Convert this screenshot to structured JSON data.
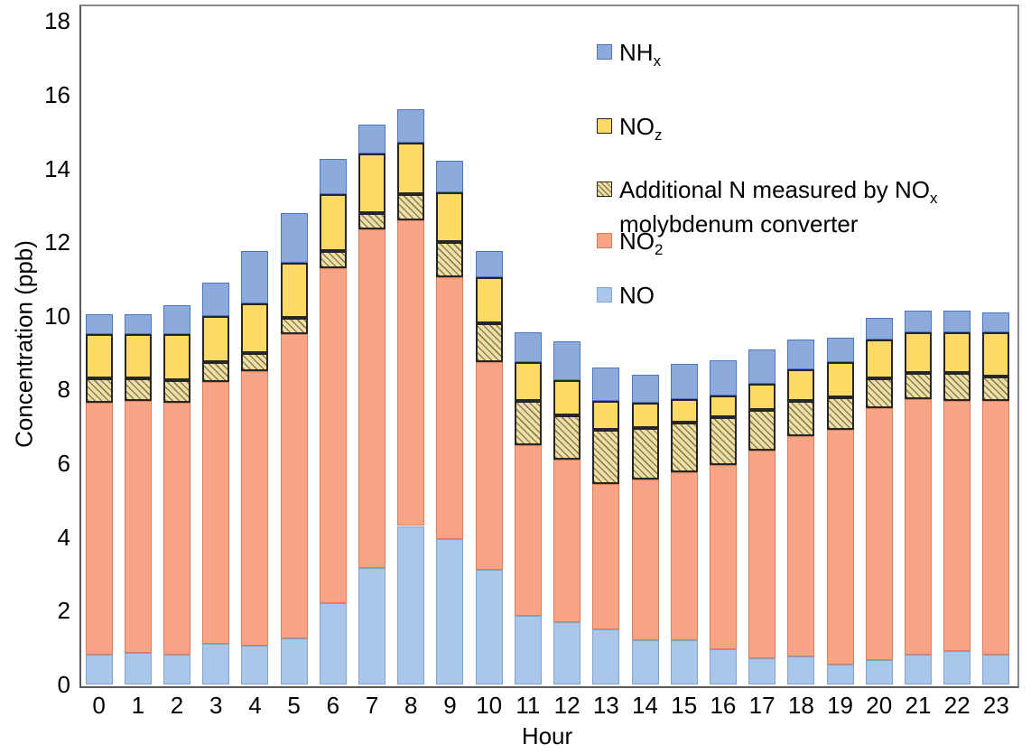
{
  "chart_data": {
    "type": "bar",
    "stacked": true,
    "title": "",
    "xlabel": "Hour",
    "ylabel": "Concentration (ppb)",
    "ylim": [
      0,
      18
    ],
    "y_ticks": [
      0,
      2,
      4,
      6,
      8,
      10,
      12,
      14,
      16,
      18
    ],
    "grid": false,
    "legend_position": "inside-top-center-right",
    "categories": [
      0,
      1,
      2,
      3,
      4,
      5,
      6,
      7,
      8,
      9,
      10,
      11,
      12,
      13,
      14,
      15,
      16,
      17,
      18,
      19,
      20,
      21,
      22,
      23
    ],
    "series": [
      {
        "name": "NO",
        "label_parts": [
          [
            "t",
            "NO"
          ]
        ],
        "color": "#A9C7E8",
        "border": "#7FA5CE",
        "values": [
          0.8,
          0.85,
          0.8,
          1.1,
          1.05,
          1.25,
          2.2,
          3.15,
          4.3,
          3.95,
          3.1,
          1.85,
          1.7,
          1.5,
          1.2,
          1.2,
          0.95,
          0.7,
          0.75,
          0.55,
          0.65,
          0.8,
          0.9,
          0.8
        ]
      },
      {
        "name": "NO2",
        "label_parts": [
          [
            "t",
            "NO"
          ],
          [
            "s",
            "2"
          ]
        ],
        "color": "#F7A586",
        "border": "#DD7D55",
        "values": [
          6.85,
          6.85,
          6.85,
          7.1,
          7.45,
          8.25,
          9.1,
          9.2,
          8.3,
          7.1,
          5.65,
          4.65,
          4.4,
          3.95,
          4.35,
          4.55,
          5.0,
          5.65,
          6.0,
          6.35,
          6.85,
          6.95,
          6.8,
          6.9
        ]
      },
      {
        "name": "Additional N measured by NOx molybdenum converter",
        "label_parts": [
          [
            "t",
            "Additional N measured by NO"
          ],
          [
            "s",
            "x"
          ],
          [
            "n",
            ""
          ],
          [
            "t",
            "molybdenum converter"
          ]
        ],
        "color": "#EDDFAD",
        "hatch": "#93813E",
        "border": "#262626",
        "values": [
          0.65,
          0.6,
          0.6,
          0.55,
          0.5,
          0.45,
          0.45,
          0.45,
          0.7,
          0.95,
          1.05,
          1.2,
          1.2,
          1.45,
          1.4,
          1.35,
          1.3,
          1.1,
          0.95,
          0.9,
          0.8,
          0.7,
          0.75,
          0.65
        ]
      },
      {
        "name": "NOz",
        "label_parts": [
          [
            "t",
            "NO"
          ],
          [
            "s",
            "z"
          ]
        ],
        "color": "#FED966",
        "border": "#262626",
        "values": [
          1.2,
          1.2,
          1.25,
          1.25,
          1.35,
          1.5,
          1.55,
          1.6,
          1.4,
          1.35,
          1.25,
          1.05,
          0.95,
          0.8,
          0.7,
          0.65,
          0.6,
          0.7,
          0.85,
          0.95,
          1.05,
          1.1,
          1.1,
          1.2
        ]
      },
      {
        "name": "NHx",
        "label_parts": [
          [
            "t",
            "NH"
          ],
          [
            "s",
            "x"
          ]
        ],
        "color": "#8EA9DB",
        "border": "#4C74C4",
        "values": [
          0.55,
          0.55,
          0.8,
          0.9,
          1.4,
          1.35,
          0.95,
          0.8,
          0.9,
          0.85,
          0.7,
          0.8,
          1.05,
          0.9,
          0.75,
          0.95,
          0.95,
          0.95,
          0.8,
          0.65,
          0.6,
          0.6,
          0.6,
          0.55
        ]
      }
    ],
    "legend_order_top_to_bottom": [
      "NHx",
      "NOz",
      "Additional N measured by NOx molybdenum converter",
      "NO2",
      "NO"
    ]
  }
}
